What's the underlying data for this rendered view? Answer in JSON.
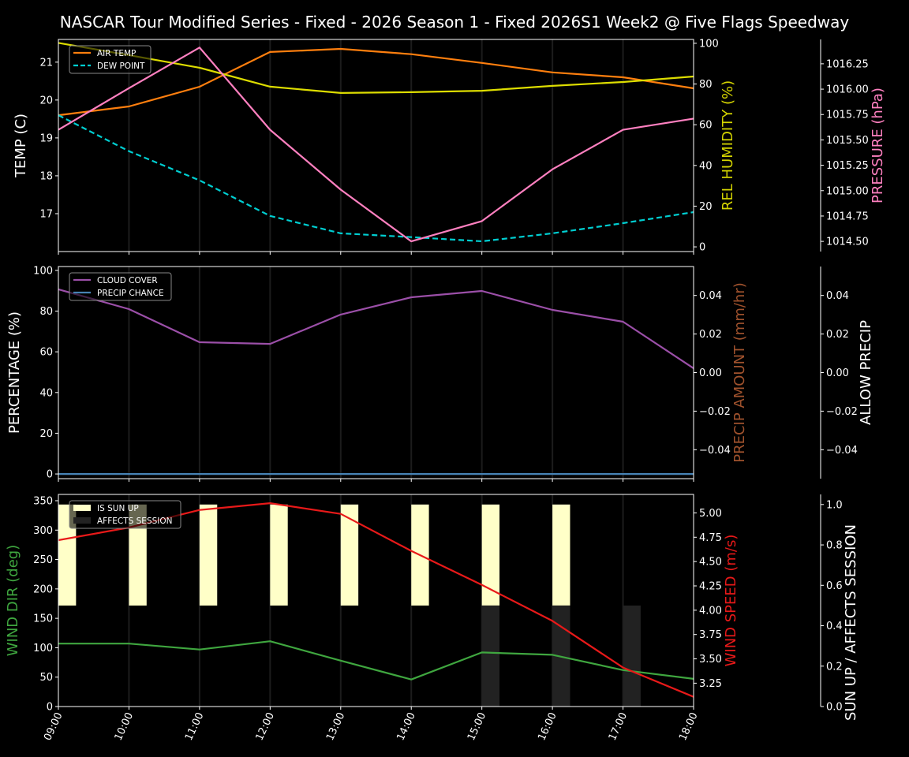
{
  "title": "NASCAR Tour Modified Series - Fixed - 2026 Season 1 - Fixed 2026S1 Week2 @ Five Flags Speedway",
  "chart_data": [
    {
      "type": "line",
      "x": [
        "09:00",
        "10:00",
        "11:00",
        "12:00",
        "13:00",
        "14:00",
        "15:00",
        "16:00",
        "17:00",
        "18:00"
      ],
      "grid": "vertical",
      "legend_position": "top-left",
      "axes": {
        "left": {
          "label": "TEMP (C)",
          "ylim": [
            16.0,
            21.6
          ],
          "ticks": [
            "17",
            "18",
            "19",
            "20",
            "21"
          ],
          "color": "#ffffff"
        },
        "right": {
          "label": "REL HUMIDITY (%)",
          "ylim": [
            -2.3,
            101.9
          ],
          "ticks": [
            "0",
            "20",
            "40",
            "60",
            "80",
            "100"
          ],
          "color": "#d4d400"
        },
        "far_right": {
          "label": "PRESSURE (hPa)",
          "ylim": [
            1014.4,
            1016.49
          ],
          "ticks": [
            "1014.50",
            "1014.75",
            "1015.00",
            "1015.25",
            "1015.50",
            "1015.75",
            "1016.00",
            "1016.25"
          ],
          "color": "#ff80c0"
        }
      },
      "series": [
        {
          "name": "AIR TEMP",
          "axis": "left",
          "color": "#ff7f0e",
          "dashed": false,
          "legend": true,
          "values": [
            19.6,
            19.83,
            20.35,
            21.27,
            21.35,
            21.21,
            20.98,
            20.73,
            20.6,
            20.31
          ]
        },
        {
          "name": "DEW POINT",
          "axis": "left",
          "color": "#00ced1",
          "dashed": true,
          "legend": true,
          "values": [
            19.6,
            18.65,
            17.88,
            16.94,
            16.48,
            16.38,
            16.27,
            16.48,
            16.75,
            17.04
          ]
        },
        {
          "axis": "right",
          "color": "#dddd00",
          "dashed": false,
          "legend": false,
          "values": [
            100.2,
            94.2,
            88.0,
            78.7,
            75.6,
            76.0,
            76.7,
            79.1,
            81.0,
            83.7
          ]
        },
        {
          "axis": "far_right",
          "color": "#ff80c0",
          "dashed": false,
          "legend": false,
          "values": [
            1015.6,
            1016.01,
            1016.41,
            1015.6,
            1015.01,
            1014.5,
            1014.7,
            1015.21,
            1015.6,
            1015.71
          ]
        }
      ]
    },
    {
      "type": "line",
      "x": [
        "09:00",
        "10:00",
        "11:00",
        "12:00",
        "13:00",
        "14:00",
        "15:00",
        "16:00",
        "17:00",
        "18:00"
      ],
      "grid": "vertical",
      "legend_position": "top-left",
      "axes": {
        "left": {
          "label": "PERCENTAGE (%)",
          "ylim": [
            -2.3,
            101.9
          ],
          "ticks": [
            "0",
            "20",
            "40",
            "60",
            "80",
            "100"
          ],
          "color": "#ffffff"
        },
        "right": {
          "label": "PRECIP AMOUNT (mm/hr)",
          "ylim": [
            -0.055,
            0.055
          ],
          "ticks": [
            "−0.04",
            "−0.02",
            "0.00",
            "0.02",
            "0.04"
          ],
          "color": "#a0522d"
        },
        "far_right": {
          "label": "ALLOW PRECIP",
          "ylim": [
            -0.055,
            0.055
          ],
          "ticks": [
            "−0.04",
            "−0.02",
            "0.00",
            "0.02",
            "0.04"
          ],
          "color": "#ffffff"
        }
      },
      "series": [
        {
          "name": "CLOUD COVER",
          "axis": "left",
          "color": "#9b4fa8",
          "dashed": false,
          "legend": true,
          "values": [
            90.7,
            81.0,
            64.7,
            63.9,
            78.3,
            86.8,
            89.9,
            80.6,
            74.8,
            51.9
          ]
        },
        {
          "name": "PRECIP CHANCE",
          "axis": "left",
          "color": "#4682b4",
          "dashed": false,
          "legend": true,
          "values": [
            0,
            0,
            0,
            0,
            0,
            0,
            0,
            0,
            0,
            0
          ]
        }
      ]
    },
    {
      "type": "line",
      "x": [
        "09:00",
        "10:00",
        "11:00",
        "12:00",
        "13:00",
        "14:00",
        "15:00",
        "16:00",
        "17:00",
        "18:00"
      ],
      "grid": "vertical",
      "legend_position": "top-left",
      "axes": {
        "left": {
          "label": "WIND DIR (deg)",
          "ylim": [
            0,
            360.7
          ],
          "ticks": [
            "0",
            "50",
            "100",
            "150",
            "200",
            "250",
            "300",
            "350"
          ],
          "color": "#3fa63f"
        },
        "right": {
          "label": "WIND SPEED (m/s)",
          "ylim": [
            3.01,
            5.19
          ],
          "ticks": [
            "3.25",
            "3.50",
            "3.75",
            "4.00",
            "4.25",
            "4.50",
            "4.75",
            "5.00"
          ],
          "color": "#e81919"
        },
        "far_right": {
          "label": "SUN UP / AFFECTS SESSION",
          "ylim": [
            0,
            1.05
          ],
          "ticks": [
            "0.0",
            "0.2",
            "0.4",
            "0.6",
            "0.8",
            "1.0"
          ],
          "color": "#ffffff"
        }
      },
      "bars": [
        {
          "name": "IS SUN UP",
          "color": "#ffffc8",
          "values": [
            1,
            1,
            1,
            1,
            1,
            1,
            1,
            1,
            0,
            0
          ]
        },
        {
          "name": "AFFECTS SESSION",
          "color": "#222222",
          "values": [
            0,
            0,
            0,
            0,
            0,
            0,
            1,
            1,
            1,
            0
          ]
        }
      ],
      "series": [
        {
          "axis": "left",
          "color": "#3fa63f",
          "dashed": false,
          "legend": false,
          "values": [
            107,
            107,
            97,
            111,
            78,
            46,
            92,
            88,
            62,
            47
          ]
        },
        {
          "axis": "right",
          "color": "#e81919",
          "dashed": false,
          "legend": false,
          "values": [
            4.72,
            4.85,
            5.03,
            5.1,
            4.99,
            4.61,
            4.26,
            3.89,
            3.41,
            3.11
          ]
        }
      ]
    }
  ]
}
